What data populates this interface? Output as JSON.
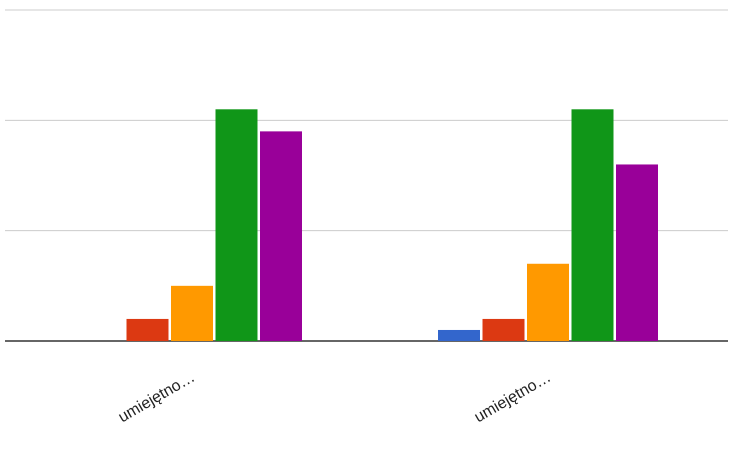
{
  "chart_data": {
    "type": "bar",
    "categories": [
      "umiejętno…",
      "umiejętno…"
    ],
    "series": [
      {
        "color": "#3366cc",
        "values": [
          0,
          1
        ]
      },
      {
        "color": "#dc3912",
        "values": [
          2,
          2
        ]
      },
      {
        "color": "#ff9900",
        "values": [
          5,
          7
        ]
      },
      {
        "color": "#109618",
        "values": [
          21,
          21
        ]
      },
      {
        "color": "#990099",
        "values": [
          19,
          16
        ]
      }
    ],
    "ylim": [
      0,
      30
    ],
    "yticks": [
      0,
      10,
      20,
      30
    ],
    "grid": true
  }
}
